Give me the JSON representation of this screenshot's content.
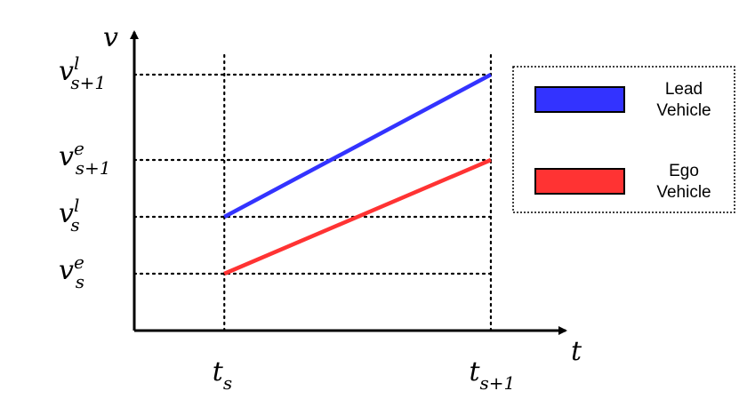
{
  "chart_data": {
    "type": "line",
    "xlabel": "t",
    "ylabel": "v",
    "x_ticks": [
      {
        "base": "t",
        "sub": "s"
      },
      {
        "base": "t",
        "sub": "s+1"
      }
    ],
    "y_ticks": [
      {
        "base": "v",
        "sup": "e",
        "sub": "s",
        "value": 0.2
      },
      {
        "base": "v",
        "sup": "l",
        "sub": "s",
        "value": 0.4
      },
      {
        "base": "v",
        "sup": "e",
        "sub": "s+1",
        "value": 0.6
      },
      {
        "base": "v",
        "sup": "l",
        "sub": "s+1",
        "value": 0.9
      }
    ],
    "xlim": [
      0,
      1
    ],
    "ylim": [
      0,
      1
    ],
    "x_tick_values": [
      0.25,
      0.99
    ],
    "series": [
      {
        "name": "Lead Vehicle",
        "legend_lines": [
          "Lead",
          "Vehicle"
        ],
        "color": "#3333ff",
        "x": [
          0.25,
          0.99
        ],
        "y": [
          0.4,
          0.9
        ]
      },
      {
        "name": "Ego Vehicle",
        "legend_lines": [
          "Ego",
          "Vehicle"
        ],
        "color": "#ff3333",
        "x": [
          0.25,
          0.99
        ],
        "y": [
          0.2,
          0.6
        ]
      }
    ],
    "reference_lines": "dotted",
    "legend_position": "top-right",
    "grid": false
  }
}
